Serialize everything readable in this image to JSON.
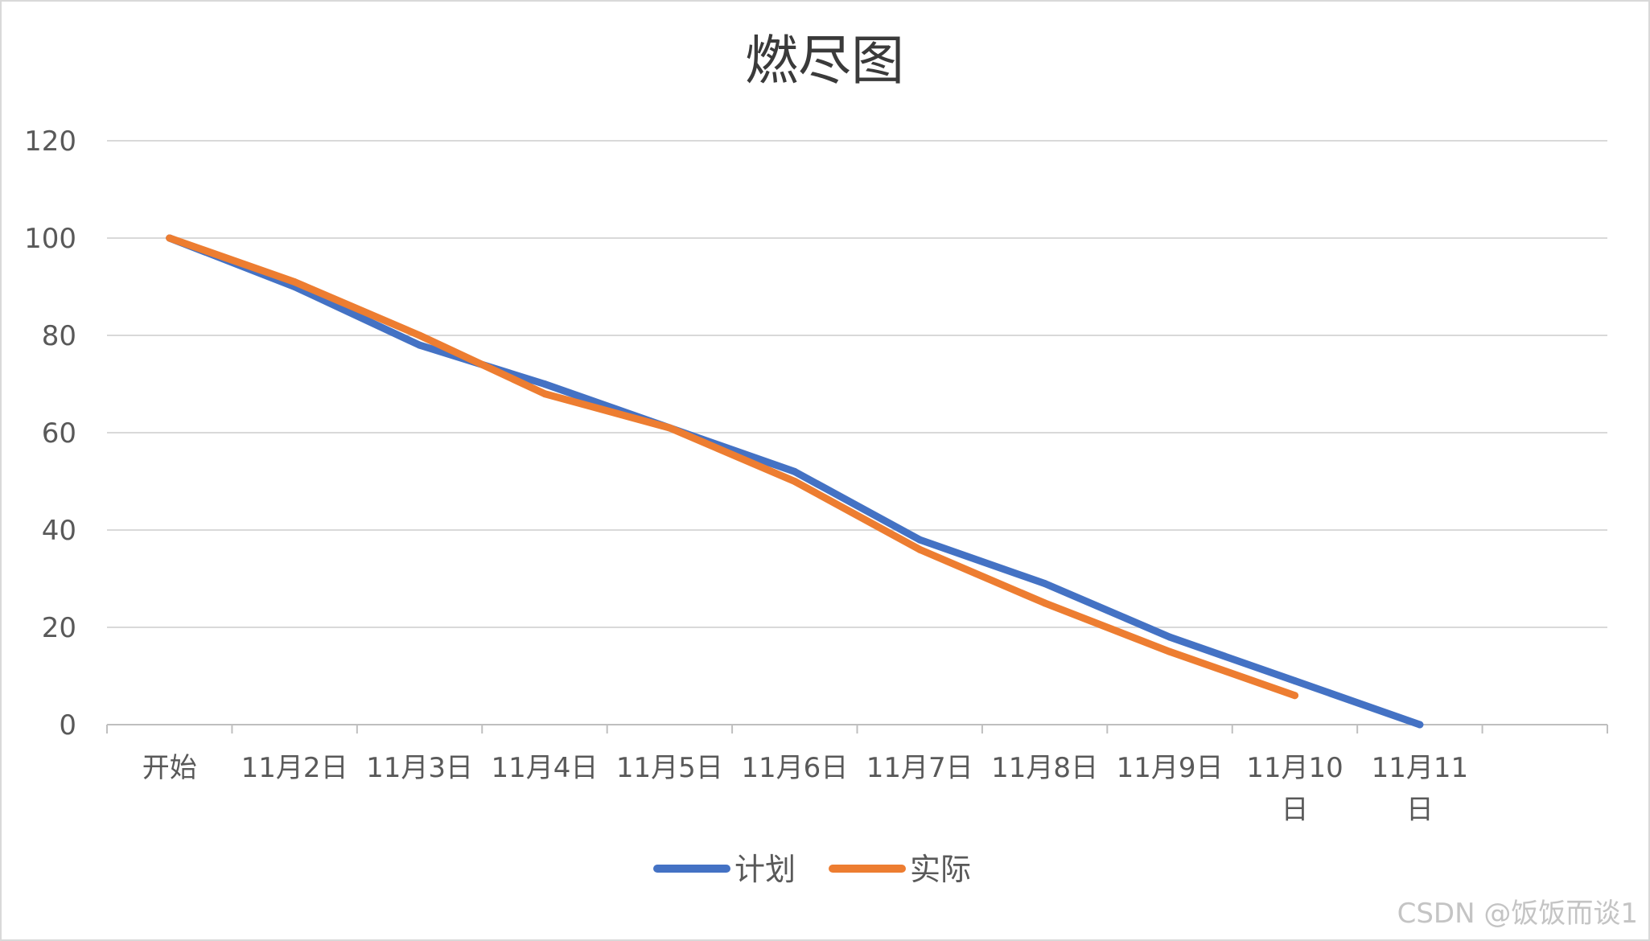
{
  "chart_data": {
    "type": "line",
    "title": "燃尽图",
    "xlabel": "",
    "ylabel": "",
    "categories": [
      "开始",
      "11月2日",
      "11月3日",
      "11月4日",
      "11月5日",
      "11月6日",
      "11月7日",
      "11月8日",
      "11月9日",
      "11月10日",
      "11月11日",
      ""
    ],
    "category_lines": [
      [
        "开始"
      ],
      [
        "11月2日"
      ],
      [
        "11月3日"
      ],
      [
        "11月4日"
      ],
      [
        "11月5日"
      ],
      [
        "11月6日"
      ],
      [
        "11月7日"
      ],
      [
        "11月8日"
      ],
      [
        "11月9日"
      ],
      [
        "11月10",
        "日"
      ],
      [
        "11月11",
        "日"
      ],
      []
    ],
    "ylim": [
      0,
      120
    ],
    "yticks": [
      0,
      20,
      40,
      60,
      80,
      100,
      120
    ],
    "grid": true,
    "legend_position": "bottom",
    "series": [
      {
        "name": "计划",
        "color": "#4472c4",
        "values": [
          100,
          90,
          78,
          70,
          61,
          52,
          38,
          29,
          18,
          9,
          0,
          null
        ]
      },
      {
        "name": "实际",
        "color": "#ed7d31",
        "values": [
          100,
          91,
          80,
          68,
          61,
          50,
          36,
          25,
          15,
          6,
          null,
          null
        ]
      }
    ]
  },
  "watermark": "CSDN @饭饭而谈1"
}
